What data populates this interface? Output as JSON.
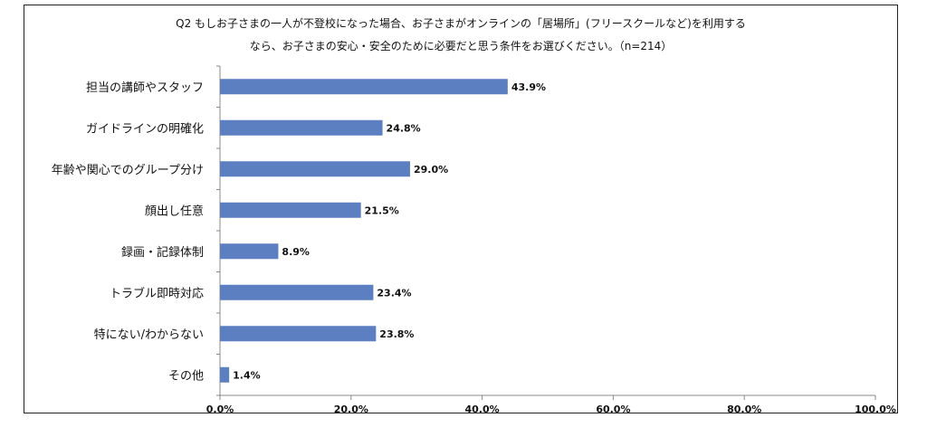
{
  "chart_data": {
    "type": "bar",
    "orientation": "horizontal",
    "title_line1": "Q2 もしお子さまの一人が不登校になった場合、お子さまがオンラインの「居場所」(フリースクールなど)を利用する",
    "title_line2": "なら、お子さまの安心・安全のために必要だと思う条件をお選びください。（n=214）",
    "categories": [
      "担当の講師やスタッフ",
      "ガイドラインの明確化",
      "年齢や関心でのグループ分け",
      "顔出し任意",
      "録画・記録体制",
      "トラブル即時対応",
      "特にない/わからない",
      "その他"
    ],
    "values": [
      43.9,
      24.8,
      29.0,
      21.5,
      8.9,
      23.4,
      23.8,
      1.4
    ],
    "value_labels": [
      "43.9%",
      "24.8%",
      "29.0%",
      "21.5%",
      "8.9%",
      "23.4%",
      "23.8%",
      "1.4%"
    ],
    "xlim": [
      0,
      100
    ],
    "xticks": [
      "0.0%",
      "20.0%",
      "40.0%",
      "60.0%",
      "80.0%",
      "100.0%"
    ],
    "bar_color": "#5b7fc0",
    "grid": false
  }
}
